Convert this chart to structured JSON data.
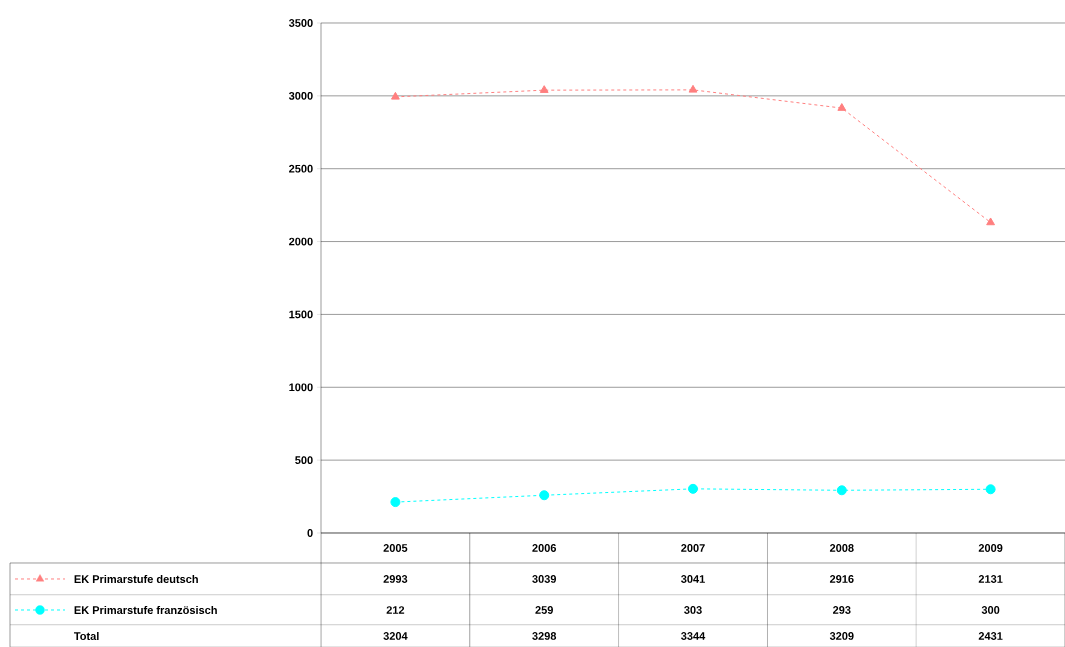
{
  "chart_data": {
    "type": "line",
    "categories": [
      "2005",
      "2006",
      "2007",
      "2008",
      "2009"
    ],
    "series": [
      {
        "name": "EK Primarstufe deutsch",
        "color": "#ff7f7f",
        "marker": "triangle",
        "line_style": "dashed",
        "values": [
          2993,
          3039,
          3041,
          2916,
          2131
        ]
      },
      {
        "name": "EK Primarstufe französisch",
        "color": "#00ffff",
        "marker": "circle",
        "line_style": "dashed",
        "values": [
          212,
          259,
          303,
          293,
          300
        ]
      }
    ],
    "ylim": [
      0,
      3500
    ],
    "yticks": [
      0,
      500,
      1000,
      1500,
      2000,
      2500,
      3000,
      3500
    ],
    "grid": "y",
    "legend": "bottom left",
    "data_labels": true,
    "totals": [
      "3204",
      "3298",
      "3344",
      "3209",
      "2431"
    ],
    "annotations": [
      "Total"
    ]
  }
}
